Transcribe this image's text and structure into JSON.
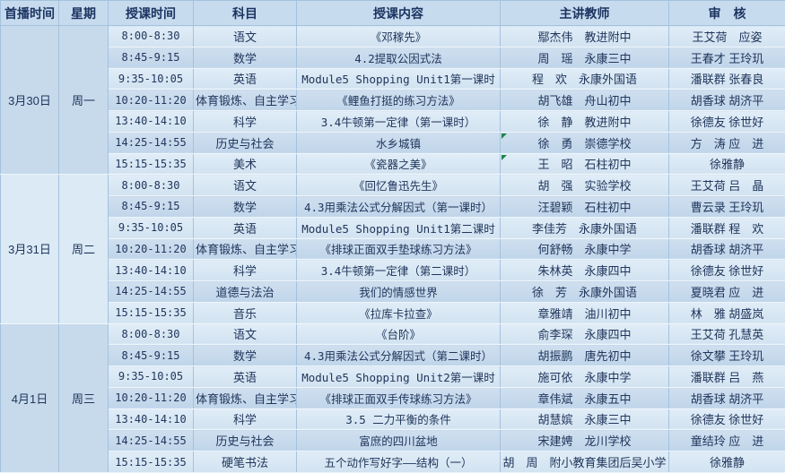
{
  "app": {
    "type": "spreadsheet-class-schedule"
  },
  "colors": {
    "header_bg": "#c7dbee",
    "row_light": "#d9e7f4",
    "row_dark": "#c6daec",
    "group_shade_dark": "#c6daec",
    "group_shade_light": "#dceaf6",
    "grid_line": "#a4c2de",
    "header_text": "#1c3461",
    "body_text": "#20365c",
    "comment_triangle": "#1e8449"
  },
  "table": {
    "headers": [
      {
        "label": "首播时间"
      },
      {
        "label": "星期"
      },
      {
        "label": "授课时间"
      },
      {
        "label": "科目"
      },
      {
        "label": "授课内容"
      },
      {
        "label": "主讲教师"
      },
      {
        "label": "审　核"
      }
    ],
    "groups": [
      {
        "date": "3月30日",
        "weekday": "周一",
        "shade": "dark",
        "rows": [
          {
            "time": "8:00-8:30",
            "subject": "语文",
            "content": "《邓稼先》",
            "teacher": "鄢杰伟　教进附中",
            "reviewer": "王艾荷　应姿"
          },
          {
            "time": "8:45-9:15",
            "subject": "数学",
            "content": "4.2提取公因式法",
            "teacher": "周　瑶　永康三中",
            "reviewer": "王春才 王玲玑"
          },
          {
            "time": "9:35-10:05",
            "subject": "英语",
            "content": "Module5 Shopping Unit1第一课时",
            "teacher": "程　欢　永康外国语",
            "reviewer": "潘联群 张春良"
          },
          {
            "time": "10:20-11:20",
            "subject": "体育锻炼、自主学习",
            "content": "《鲤鱼打挺的练习方法》",
            "teacher": "胡飞雄　舟山初中",
            "reviewer": "胡香球 胡济平"
          },
          {
            "time": "13:40-14:10",
            "subject": "科学",
            "content": "3.4牛顿第一定律（第一课时）",
            "teacher": "徐　静　教进附中",
            "reviewer": "徐德友 徐世好"
          },
          {
            "time": "14:25-14:55",
            "subject": "历史与社会",
            "content": "水乡城镇",
            "teacher": "徐　勇　崇德学校",
            "reviewer": "方　涛 应　进",
            "note": true
          },
          {
            "time": "15:15-15:35",
            "subject": "美术",
            "content": "《瓷器之美》",
            "teacher": "王　昭　石柱初中",
            "reviewer": "徐雅静",
            "note": true
          }
        ]
      },
      {
        "date": "3月31日",
        "weekday": "周二",
        "shade": "light",
        "rows": [
          {
            "time": "8:00-8:30",
            "subject": "语文",
            "content": "《回忆鲁迅先生》",
            "teacher": "胡　强　实验学校",
            "reviewer": "王艾荷 吕　晶"
          },
          {
            "time": "8:45-9:15",
            "subject": "数学",
            "content": "4.3用乘法公式分解因式（第一课时）",
            "teacher": "汪碧颖　石柱初中",
            "reviewer": "曹云录 王玲玑"
          },
          {
            "time": "9:35-10:05",
            "subject": "英语",
            "content": "Module5 Shopping Unit1第二课时",
            "teacher": "李佳芳　永康外国语",
            "reviewer": "潘联群 程　欢"
          },
          {
            "time": "10:20-11:20",
            "subject": "体育锻炼、自主学习",
            "content": "《排球正面双手垫球练习方法》",
            "teacher": "何舒畅　永康中学",
            "reviewer": "胡香球 胡济平"
          },
          {
            "time": "13:40-14:10",
            "subject": "科学",
            "content": "3.4牛顿第一定律（第二课时）",
            "teacher": "朱林英　永康四中",
            "reviewer": "徐德友 徐世好"
          },
          {
            "time": "14:25-14:55",
            "subject": "道德与法治",
            "content": "我们的情感世界",
            "teacher": "徐　芳　永康外国语",
            "reviewer": "夏晓君 应　进"
          },
          {
            "time": "15:15-15:35",
            "subject": "音乐",
            "content": "《拉库卡拉查》",
            "teacher": "章雅靖　油川初中",
            "reviewer": "林　雅 胡盛岚"
          }
        ]
      },
      {
        "date": "4月1日",
        "weekday": "周三",
        "shade": "dark",
        "rows": [
          {
            "time": "8:00-8:30",
            "subject": "语文",
            "content": "《台阶》",
            "teacher": "俞李琛　永康四中",
            "reviewer": "王艾荷 孔慧英"
          },
          {
            "time": "8:45-9:15",
            "subject": "数学",
            "content": "4.3用乘法公式分解因式（第二课时）",
            "teacher": "胡振鹏　唐先初中",
            "reviewer": "徐文攀 王玲玑"
          },
          {
            "time": "9:35-10:05",
            "subject": "英语",
            "content": "Module5 Shopping Unit2第一课时",
            "teacher": "施可依　永康中学",
            "reviewer": "潘联群 吕　燕"
          },
          {
            "time": "10:20-11:20",
            "subject": "体育锻炼、自主学习",
            "content": "《排球正面双手传球练习方法》",
            "teacher": "章伟斌　永康五中",
            "reviewer": "胡香球 胡济平"
          },
          {
            "time": "13:40-14:10",
            "subject": "科学",
            "content": "3.5 二力平衡的条件",
            "teacher": "胡慧嫔　永康三中",
            "reviewer": "徐德友 徐世好"
          },
          {
            "time": "14:25-14:55",
            "subject": "历史与社会",
            "content": "富庶的四川盆地",
            "teacher": "宋建娉　龙川学校",
            "reviewer": "童结玲 应　进"
          },
          {
            "time": "15:15-15:35",
            "subject": "硬笔书法",
            "content": "五个动作写好字——结构（一）",
            "teacher": "胡　周　附小教育集团后吴小学",
            "reviewer": "徐雅静"
          }
        ]
      }
    ]
  }
}
